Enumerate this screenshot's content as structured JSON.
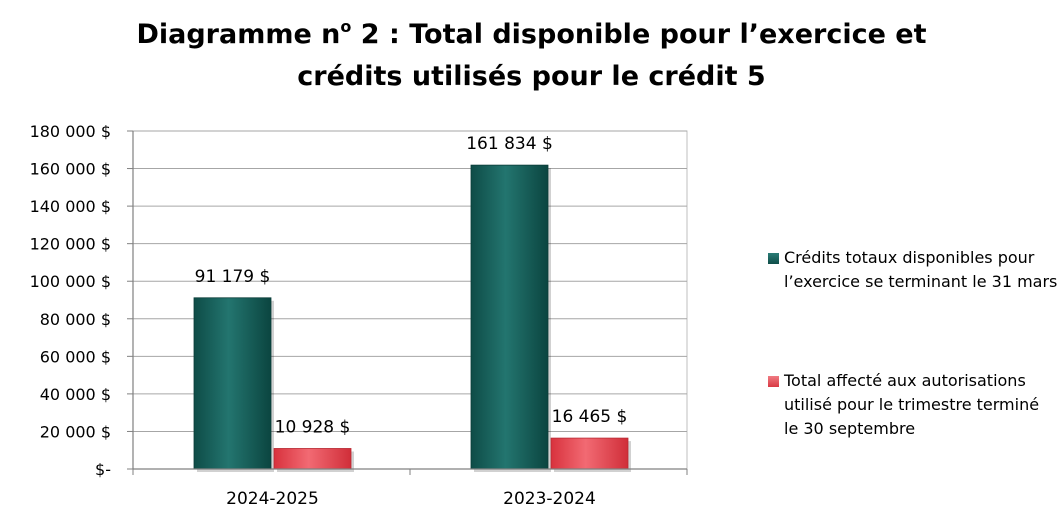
{
  "chart_data": {
    "type": "bar",
    "title_line1": "Diagramme n",
    "title_sup": "o",
    "title_line1_rest": " 2 : Total disponible pour l’exercice et",
    "title_line2": "crédits utilisés pour le crédit 5",
    "categories": [
      "2024-2025",
      "2023-2024"
    ],
    "series": [
      {
        "name": "Crédits totaux disponibles pour l’exercice se terminant le 31 mars",
        "values": [
          91179,
          161834
        ],
        "labels": [
          "91 179 $",
          "161 834 $"
        ],
        "color": "#1a635d"
      },
      {
        "name": "Total affecté aux autorisations utilisé pour le trimestre terminé le 30 septembre",
        "values": [
          10928,
          16465
        ],
        "labels": [
          "10 928 $",
          "16 465 $"
        ],
        "color": "#e8505a"
      }
    ],
    "ylim": [
      0,
      180000
    ],
    "yticks": [
      0,
      20000,
      40000,
      60000,
      80000,
      100000,
      120000,
      140000,
      160000,
      180000
    ],
    "ytick_labels": [
      "$-",
      "20 000 $",
      "40 000 $",
      "60 000 $",
      "80 000 $",
      "100 000 $",
      "120 000 $",
      "140 000 $",
      "160 000 $",
      "180 000 $"
    ],
    "grid": true,
    "legend_position": "right"
  }
}
